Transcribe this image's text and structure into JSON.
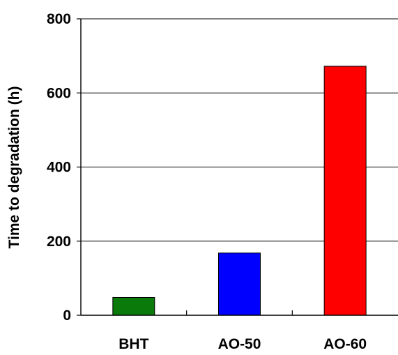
{
  "chart_data": {
    "type": "bar",
    "title": "",
    "xlabel": "",
    "ylabel": "Time to degradation (h)",
    "categories": [
      "BHT",
      "AO-50",
      "AO-60"
    ],
    "values": [
      48,
      168,
      672
    ],
    "colors": [
      "#0a7a0a",
      "#0000ff",
      "#ff0000"
    ],
    "ylim": [
      0,
      800
    ],
    "yticks": [
      0,
      200,
      400,
      600,
      800
    ],
    "grid": true,
    "legend": "none"
  }
}
